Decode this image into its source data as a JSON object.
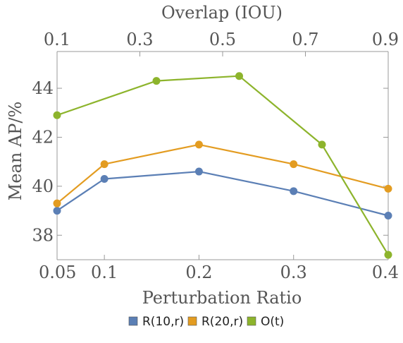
{
  "chart_data": {
    "type": "line",
    "xlabel": "Perturbation Ratio",
    "x2label": "Overlap (IOU)",
    "ylabel": "Mean AP/%",
    "xlim": [
      0.05,
      0.4
    ],
    "x2lim": [
      0.1,
      0.9
    ],
    "ylim": [
      37,
      45.5
    ],
    "x_ticks": [
      "0.05",
      "0.1",
      "0.2",
      "0.3",
      "0.4"
    ],
    "x2_ticks": [
      "0.1",
      "0.3",
      "0.5",
      "0.7",
      "0.9"
    ],
    "y_ticks": [
      "38",
      "40",
      "42",
      "44"
    ],
    "grid": false,
    "legend_position": "bottom",
    "series": [
      {
        "name": "R(10,r)",
        "axis": "bottom",
        "color": "#5b7fb5",
        "x": [
          0.05,
          0.1,
          0.2,
          0.3,
          0.4
        ],
        "y": [
          39.0,
          40.3,
          40.6,
          39.8,
          38.8
        ]
      },
      {
        "name": "R(20,r)",
        "axis": "bottom",
        "color": "#e39c21",
        "x": [
          0.05,
          0.1,
          0.2,
          0.3,
          0.4
        ],
        "y": [
          39.3,
          40.9,
          41.7,
          40.9,
          39.9
        ]
      },
      {
        "name": "O(t)",
        "axis": "top",
        "color": "#8db42c",
        "x": [
          0.1,
          0.34,
          0.54,
          0.74,
          0.9
        ],
        "y": [
          42.9,
          44.3,
          44.5,
          41.7,
          37.2
        ]
      }
    ]
  }
}
